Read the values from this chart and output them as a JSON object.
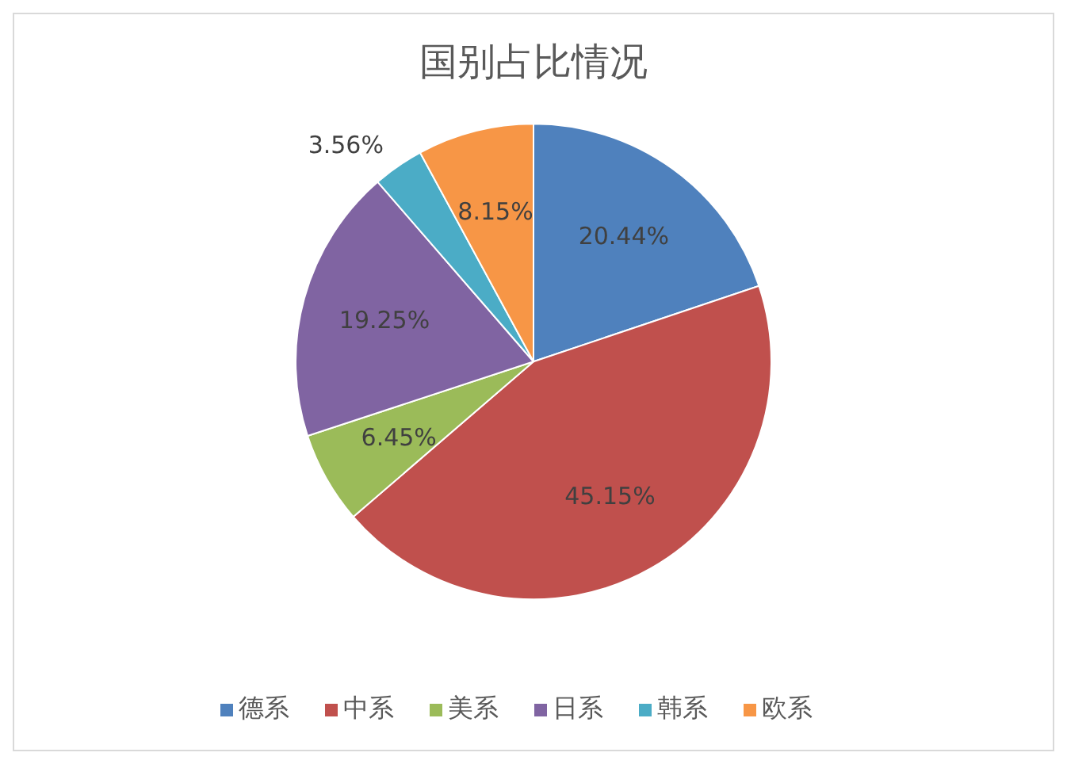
{
  "chart_data": {
    "type": "pie",
    "title": "国别占比情况",
    "categories": [
      "德系",
      "中系",
      "美系",
      "日系",
      "韩系",
      "欧系"
    ],
    "values": [
      20.44,
      45.15,
      6.45,
      19.25,
      3.56,
      8.15
    ],
    "value_labels": [
      "20.44%",
      "45.15%",
      "6.45%",
      "19.25%",
      "3.56%",
      "8.15%"
    ],
    "colors": [
      "#4f81bd",
      "#c0504d",
      "#9bbb59",
      "#8064a2",
      "#4bacc6",
      "#f79646"
    ],
    "legend": "bottom"
  }
}
